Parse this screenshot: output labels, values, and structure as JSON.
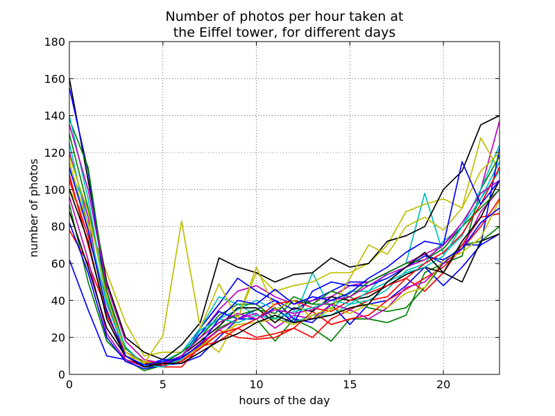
{
  "chart_data": {
    "type": "line",
    "title_lines": [
      "Number of photos per hour taken at",
      "the Eiffel tower, for different days"
    ],
    "xlabel": "hours of the day",
    "ylabel": "number of photos",
    "xlim": [
      0,
      23
    ],
    "ylim": [
      0,
      180
    ],
    "xticks": [
      0,
      5,
      10,
      15,
      20
    ],
    "yticks": [
      0,
      20,
      40,
      60,
      80,
      100,
      120,
      140,
      160,
      180
    ],
    "grid": true,
    "colors": [
      "#0000ff",
      "#008000",
      "#ff0000",
      "#00bfbf",
      "#bf00bf",
      "#bfbf00",
      "#000000"
    ],
    "x": [
      0,
      1,
      2,
      3,
      4,
      5,
      6,
      7,
      8,
      9,
      10,
      11,
      12,
      13,
      14,
      15,
      16,
      17,
      18,
      19,
      20,
      21,
      22,
      23
    ],
    "series": [
      {
        "values": [
          62,
          35,
          10,
          8,
          5,
          5,
          6,
          10,
          20,
          30,
          35,
          40,
          35,
          40,
          45,
          50,
          50,
          55,
          60,
          65,
          60,
          70,
          70,
          76
        ]
      },
      {
        "values": [
          92,
          50,
          18,
          8,
          2,
          5,
          8,
          15,
          25,
          30,
          30,
          18,
          30,
          25,
          18,
          30,
          30,
          28,
          32,
          55,
          60,
          70,
          72,
          80
        ]
      },
      {
        "values": [
          78,
          60,
          35,
          8,
          5,
          4,
          4,
          15,
          18,
          25,
          20,
          22,
          25,
          20,
          30,
          35,
          40,
          42,
          52,
          45,
          55,
          70,
          85,
          87
        ]
      },
      {
        "values": [
          110,
          90,
          40,
          12,
          6,
          7,
          12,
          22,
          30,
          35,
          40,
          35,
          30,
          55,
          35,
          45,
          45,
          55,
          60,
          98,
          65,
          75,
          95,
          115
        ]
      },
      {
        "values": [
          120,
          85,
          30,
          10,
          5,
          6,
          10,
          22,
          35,
          45,
          48,
          42,
          38,
          40,
          42,
          48,
          50,
          55,
          60,
          65,
          70,
          80,
          100,
          137
        ]
      },
      {
        "values": [
          100,
          82,
          55,
          28,
          10,
          12,
          12,
          20,
          12,
          30,
          55,
          45,
          48,
          50,
          55,
          55,
          60,
          70,
          88,
          92,
          95,
          90,
          128,
          110
        ]
      },
      {
        "values": [
          160,
          105,
          50,
          20,
          12,
          8,
          16,
          28,
          63,
          58,
          55,
          50,
          54,
          55,
          63,
          58,
          60,
          72,
          75,
          80,
          100,
          110,
          135,
          140
        ]
      },
      {
        "values": [
          155,
          110,
          40,
          10,
          5,
          8,
          8,
          25,
          38,
          52,
          45,
          40,
          30,
          28,
          38,
          27,
          38,
          40,
          48,
          58,
          48,
          58,
          70,
          122
        ]
      },
      {
        "values": [
          138,
          112,
          45,
          10,
          4,
          5,
          10,
          20,
          32,
          38,
          38,
          30,
          40,
          38,
          38,
          42,
          36,
          34,
          36,
          47,
          60,
          64,
          100,
          118
        ]
      },
      {
        "values": [
          105,
          75,
          40,
          12,
          7,
          6,
          7,
          16,
          24,
          20,
          19,
          20,
          25,
          34,
          27,
          30,
          32,
          40,
          46,
          52,
          58,
          68,
          80,
          95
        ]
      },
      {
        "values": [
          125,
          80,
          38,
          12,
          6,
          6,
          12,
          25,
          42,
          38,
          32,
          30,
          28,
          32,
          32,
          38,
          40,
          46,
          56,
          60,
          72,
          80,
          95,
          110
        ]
      },
      {
        "values": [
          96,
          62,
          22,
          8,
          4,
          6,
          8,
          17,
          24,
          30,
          33,
          25,
          32,
          30,
          38,
          35,
          30,
          36,
          47,
          50,
          60,
          68,
          88,
          100
        ]
      },
      {
        "values": [
          115,
          80,
          30,
          10,
          7,
          5,
          8,
          15,
          22,
          27,
          28,
          30,
          27,
          32,
          36,
          33,
          38,
          36,
          44,
          47,
          62,
          66,
          74,
          94
        ]
      },
      {
        "values": [
          88,
          58,
          25,
          10,
          5,
          6,
          10,
          18,
          26,
          36,
          36,
          28,
          36,
          34,
          42,
          40,
          42,
          48,
          54,
          58,
          55,
          72,
          85,
          105
        ]
      },
      {
        "values": [
          82,
          55,
          20,
          7,
          3,
          5,
          9,
          22,
          34,
          30,
          30,
          36,
          28,
          45,
          50,
          48,
          48,
          52,
          58,
          64,
          62,
          68,
          82,
          90
        ]
      },
      {
        "values": [
          130,
          90,
          45,
          14,
          6,
          6,
          12,
          20,
          28,
          32,
          35,
          33,
          42,
          38,
          45,
          42,
          50,
          55,
          60,
          62,
          68,
          80,
          90,
          100
        ]
      },
      {
        "values": [
          108,
          70,
          32,
          12,
          6,
          5,
          7,
          14,
          22,
          25,
          30,
          38,
          40,
          36,
          34,
          40,
          44,
          48,
          52,
          60,
          66,
          76,
          92,
          112
        ]
      },
      {
        "values": [
          140,
          95,
          40,
          15,
          5,
          4,
          8,
          24,
          30,
          28,
          32,
          30,
          34,
          36,
          40,
          38,
          45,
          50,
          55,
          58,
          64,
          80,
          100,
          124
        ]
      },
      {
        "values": [
          135,
          100,
          48,
          18,
          8,
          6,
          10,
          20,
          28,
          33,
          30,
          35,
          33,
          35,
          40,
          42,
          48,
          54,
          58,
          62,
          70,
          82,
          98,
          105
        ]
      },
      {
        "values": [
          118,
          88,
          42,
          12,
          6,
          21,
          83,
          25,
          49,
          30,
          58,
          35,
          40,
          30,
          35,
          52,
          70,
          65,
          80,
          85,
          78,
          90,
          110,
          120
        ]
      },
      {
        "values": [
          100,
          72,
          30,
          10,
          4,
          6,
          6,
          12,
          18,
          22,
          28,
          32,
          28,
          30,
          32,
          36,
          38,
          50,
          58,
          66,
          55,
          50,
          72,
          76
        ]
      },
      {
        "values": [
          112,
          78,
          34,
          10,
          5,
          7,
          9,
          16,
          30,
          40,
          38,
          46,
          38,
          42,
          40,
          44,
          52,
          58,
          66,
          72,
          70,
          115,
          92,
          105
        ]
      }
    ]
  }
}
